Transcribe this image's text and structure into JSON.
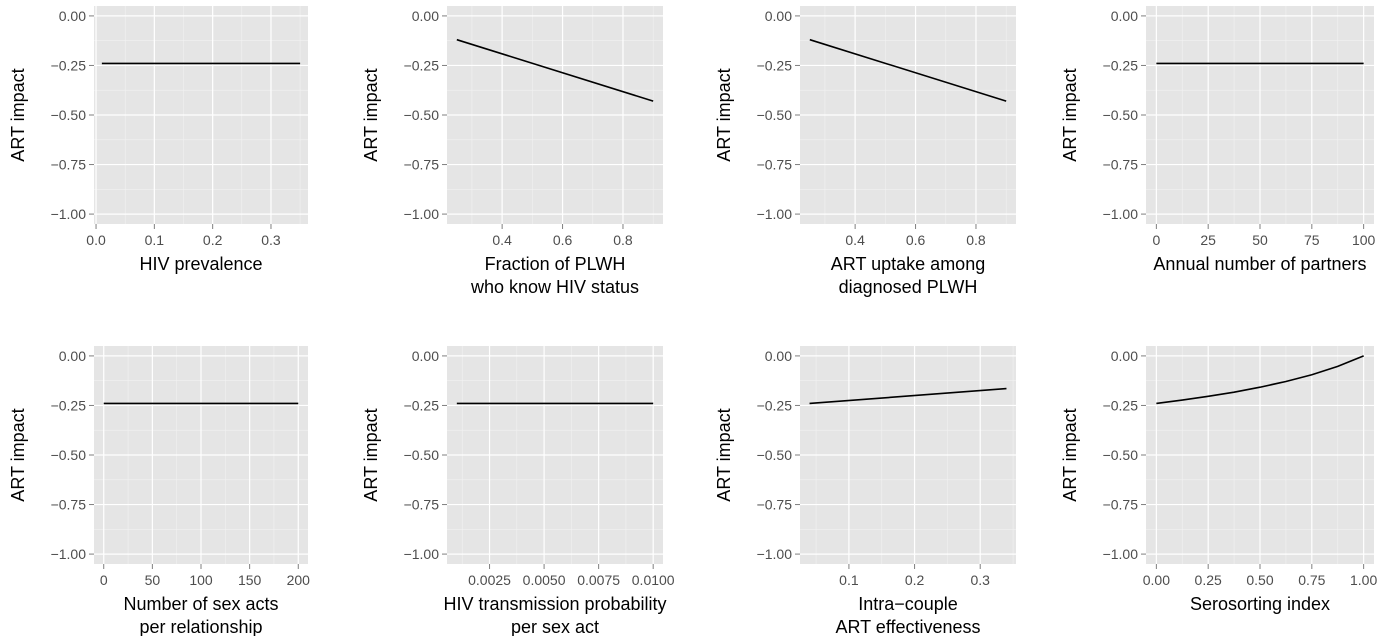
{
  "chart_data": [
    {
      "type": "line",
      "xlabel": "HIV prevalence",
      "ylabel": "ART impact",
      "xlim": [
        -0.0035,
        0.3635
      ],
      "ylim": [
        -1.05,
        0.05
      ],
      "xticks": [
        0.0,
        0.1,
        0.2,
        0.3
      ],
      "xtick_labels": [
        "0.0",
        "0.1",
        "0.2",
        "0.3"
      ],
      "yticks": [
        0.0,
        -0.25,
        -0.5,
        -0.75,
        -1.0
      ],
      "ytick_labels": [
        "0.00",
        "−0.25",
        "−0.50",
        "−0.75",
        "−1.00"
      ],
      "x": [
        0.01,
        0.35
      ],
      "y": [
        -0.24,
        -0.24
      ]
    },
    {
      "type": "line",
      "xlabel": "Fraction of PLWH\nwho know HIV status",
      "ylabel": "ART impact",
      "xlim": [
        0.2175,
        0.9325
      ],
      "ylim": [
        -1.05,
        0.05
      ],
      "xticks": [
        0.4,
        0.6,
        0.8
      ],
      "xtick_labels": [
        "0.4",
        "0.6",
        "0.8"
      ],
      "yticks": [
        0.0,
        -0.25,
        -0.5,
        -0.75,
        -1.0
      ],
      "ytick_labels": [
        "0.00",
        "−0.25",
        "−0.50",
        "−0.75",
        "−1.00"
      ],
      "x": [
        0.25,
        0.9
      ],
      "y": [
        -0.12,
        -0.43
      ]
    },
    {
      "type": "line",
      "xlabel": "ART uptake among\ndiagnosed PLWH",
      "ylabel": "ART impact",
      "xlim": [
        0.2175,
        0.9325
      ],
      "ylim": [
        -1.05,
        0.05
      ],
      "xticks": [
        0.4,
        0.6,
        0.8
      ],
      "xtick_labels": [
        "0.4",
        "0.6",
        "0.8"
      ],
      "yticks": [
        0.0,
        -0.25,
        -0.5,
        -0.75,
        -1.0
      ],
      "ytick_labels": [
        "0.00",
        "−0.25",
        "−0.50",
        "−0.75",
        "−1.00"
      ],
      "x": [
        0.25,
        0.9
      ],
      "y": [
        -0.12,
        -0.43
      ]
    },
    {
      "type": "line",
      "xlabel": "Annual number of partners",
      "ylabel": "ART impact",
      "xlim": [
        -5,
        105
      ],
      "ylim": [
        -1.05,
        0.05
      ],
      "xticks": [
        0,
        25,
        50,
        75,
        100
      ],
      "xtick_labels": [
        "0",
        "25",
        "50",
        "75",
        "100"
      ],
      "yticks": [
        0.0,
        -0.25,
        -0.5,
        -0.75,
        -1.0
      ],
      "ytick_labels": [
        "0.00",
        "−0.25",
        "−0.50",
        "−0.75",
        "−1.00"
      ],
      "x": [
        0,
        100
      ],
      "y": [
        -0.24,
        -0.24
      ]
    },
    {
      "type": "line",
      "xlabel": "Number of sex acts\nper relationship",
      "ylabel": "ART impact",
      "xlim": [
        -10,
        210
      ],
      "ylim": [
        -1.05,
        0.05
      ],
      "xticks": [
        0,
        50,
        100,
        150,
        200
      ],
      "xtick_labels": [
        "0",
        "50",
        "100",
        "150",
        "200"
      ],
      "yticks": [
        0.0,
        -0.25,
        -0.5,
        -0.75,
        -1.0
      ],
      "ytick_labels": [
        "0.00",
        "−0.25",
        "−0.50",
        "−0.75",
        "−1.00"
      ],
      "x": [
        0,
        200
      ],
      "y": [
        -0.24,
        -0.24
      ]
    },
    {
      "type": "line",
      "xlabel": "HIV transmission probability\nper sex act",
      "ylabel": "ART impact",
      "xlim": [
        0.00055,
        0.01045
      ],
      "ylim": [
        -1.05,
        0.05
      ],
      "xticks": [
        0.0025,
        0.005,
        0.0075,
        0.01
      ],
      "xtick_labels": [
        "0.0025",
        "0.0050",
        "0.0075",
        "0.0100"
      ],
      "yticks": [
        0.0,
        -0.25,
        -0.5,
        -0.75,
        -1.0
      ],
      "ytick_labels": [
        "0.00",
        "−0.25",
        "−0.50",
        "−0.75",
        "−1.00"
      ],
      "x": [
        0.001,
        0.01
      ],
      "y": [
        -0.24,
        -0.24
      ]
    },
    {
      "type": "line",
      "xlabel": "Intra−couple\nART effectiveness",
      "ylabel": "ART impact",
      "xlim": [
        0.0255,
        0.3545
      ],
      "ylim": [
        -1.05,
        0.05
      ],
      "xticks": [
        0.1,
        0.2,
        0.3
      ],
      "xtick_labels": [
        "0.1",
        "0.2",
        "0.3"
      ],
      "yticks": [
        0.0,
        -0.25,
        -0.5,
        -0.75,
        -1.0
      ],
      "ytick_labels": [
        "0.00",
        "−0.25",
        "−0.50",
        "−0.75",
        "−1.00"
      ],
      "x": [
        0.04,
        0.34
      ],
      "y": [
        -0.24,
        -0.165
      ]
    },
    {
      "type": "line",
      "xlabel": "Serosorting index",
      "ylabel": "ART impact",
      "xlim": [
        -0.05,
        1.05
      ],
      "ylim": [
        -1.05,
        0.05
      ],
      "xticks": [
        0.0,
        0.25,
        0.5,
        0.75,
        1.0
      ],
      "xtick_labels": [
        "0.00",
        "0.25",
        "0.50",
        "0.75",
        "1.00"
      ],
      "yticks": [
        0.0,
        -0.25,
        -0.5,
        -0.75,
        -1.0
      ],
      "ytick_labels": [
        "0.00",
        "−0.25",
        "−0.50",
        "−0.75",
        "−1.00"
      ],
      "x": [
        0.0,
        0.125,
        0.25,
        0.375,
        0.5,
        0.625,
        0.75,
        0.875,
        1.0
      ],
      "y": [
        -0.24,
        -0.223,
        -0.204,
        -0.183,
        -0.158,
        -0.129,
        -0.095,
        -0.053,
        0.0
      ]
    }
  ]
}
